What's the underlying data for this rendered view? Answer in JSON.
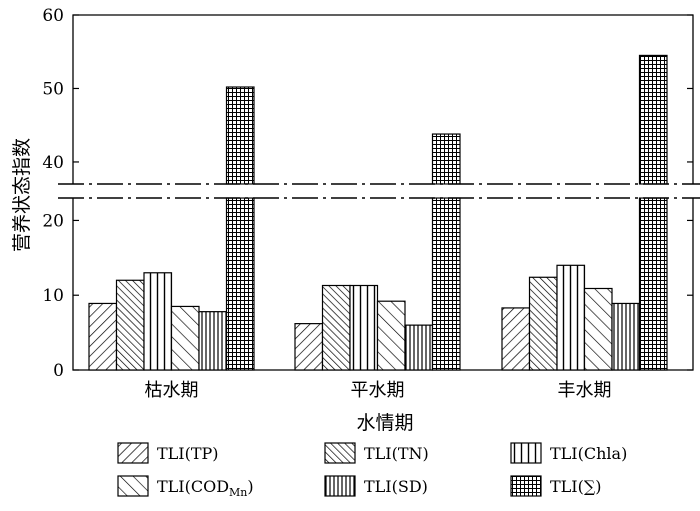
{
  "chart_data": {
    "type": "bar",
    "xlabel": "水情期",
    "ylabel": "营养状态指数",
    "categories": [
      "枯水期",
      "平水期",
      "丰水期"
    ],
    "axis_break": {
      "lower_range": [
        0,
        23
      ],
      "upper_range": [
        37,
        60
      ]
    },
    "yticks": [
      "0",
      "10",
      "20",
      "40",
      "50",
      "60"
    ],
    "series": [
      {
        "name": "TLI(TP)",
        "pattern": "diag-forward",
        "values": [
          8.9,
          6.2,
          8.3
        ]
      },
      {
        "name": "TLI(TN)",
        "pattern": "diag-backward-dense",
        "values": [
          12.0,
          11.3,
          12.4
        ]
      },
      {
        "name": "TLI(Chla)",
        "pattern": "vertical-wide",
        "values": [
          13.0,
          11.3,
          14.0
        ]
      },
      {
        "name": "TLI(COD",
        "name_sub": "Mn",
        "name_suffix": ")",
        "pattern": "diag-backward",
        "values": [
          8.5,
          9.2,
          10.9
        ]
      },
      {
        "name": "TLI(SD)",
        "pattern": "vertical-dense",
        "values": [
          7.8,
          6.0,
          8.9
        ]
      },
      {
        "name": "TLI(∑)",
        "pattern": "grid",
        "values": [
          50.2,
          43.8,
          54.5
        ]
      }
    ]
  }
}
